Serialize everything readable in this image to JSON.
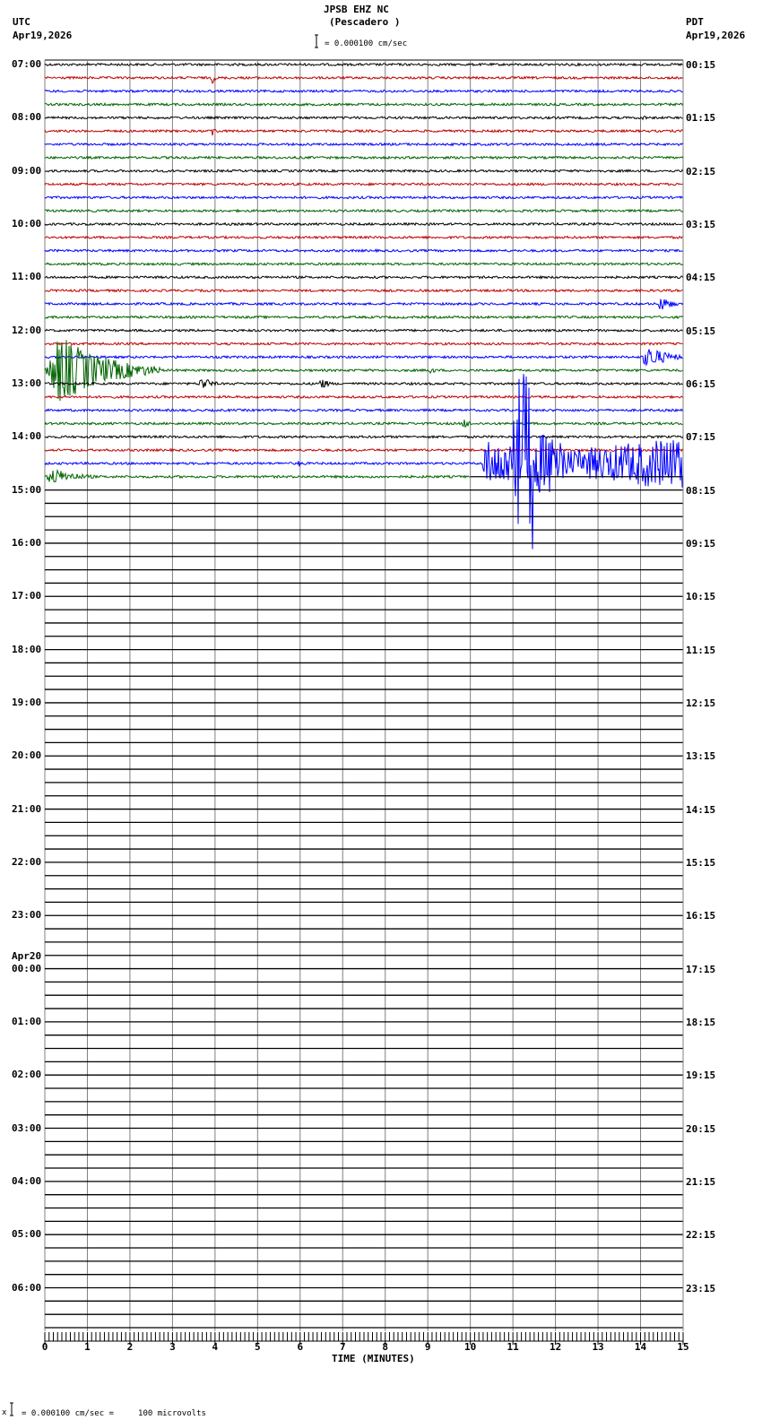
{
  "header": {
    "station": "JPSB EHZ NC",
    "location": "(Pescadero )",
    "left_tz": "UTC",
    "left_date": "Apr19,2026",
    "right_tz": "PDT",
    "right_date": "Apr19,2026",
    "scale_label": "= 0.000100 cm/sec"
  },
  "footer": {
    "scale_note": "= 0.000100 cm/sec =     100 microvolts",
    "marker": "x"
  },
  "chart_data": {
    "type": "line",
    "title": "JPSB EHZ NC (Pescadero )",
    "xlabel": "TIME (MINUTES)",
    "ylabel": "",
    "x_ticks": [
      0,
      1,
      2,
      3,
      4,
      5,
      6,
      7,
      8,
      9,
      10,
      11,
      12,
      13,
      14,
      15
    ],
    "xlim": [
      0,
      15
    ],
    "grid": true,
    "rows_total": 96,
    "rows_with_data": 32,
    "row_minutes": 15,
    "trace_colors": [
      "#000000",
      "#c00000",
      "#0000ff",
      "#006400"
    ],
    "left_labels": [
      {
        "row": 0,
        "text": "07:00"
      },
      {
        "row": 4,
        "text": "08:00"
      },
      {
        "row": 8,
        "text": "09:00"
      },
      {
        "row": 12,
        "text": "10:00"
      },
      {
        "row": 16,
        "text": "11:00"
      },
      {
        "row": 20,
        "text": "12:00"
      },
      {
        "row": 24,
        "text": "13:00"
      },
      {
        "row": 28,
        "text": "14:00"
      },
      {
        "row": 32,
        "text": "15:00"
      },
      {
        "row": 36,
        "text": "16:00"
      },
      {
        "row": 40,
        "text": "17:00"
      },
      {
        "row": 44,
        "text": "18:00"
      },
      {
        "row": 48,
        "text": "19:00"
      },
      {
        "row": 52,
        "text": "20:00"
      },
      {
        "row": 56,
        "text": "21:00"
      },
      {
        "row": 60,
        "text": "22:00"
      },
      {
        "row": 64,
        "text": "23:00"
      },
      {
        "row": 68,
        "text": "00:00",
        "date": "Apr20"
      },
      {
        "row": 72,
        "text": "01:00"
      },
      {
        "row": 76,
        "text": "02:00"
      },
      {
        "row": 80,
        "text": "03:00"
      },
      {
        "row": 84,
        "text": "04:00"
      },
      {
        "row": 88,
        "text": "05:00"
      },
      {
        "row": 92,
        "text": "06:00"
      }
    ],
    "right_labels": [
      {
        "row": 0,
        "text": "00:15"
      },
      {
        "row": 4,
        "text": "01:15"
      },
      {
        "row": 8,
        "text": "02:15"
      },
      {
        "row": 12,
        "text": "03:15"
      },
      {
        "row": 16,
        "text": "04:15"
      },
      {
        "row": 20,
        "text": "05:15"
      },
      {
        "row": 24,
        "text": "06:15"
      },
      {
        "row": 28,
        "text": "07:15"
      },
      {
        "row": 32,
        "text": "08:15"
      },
      {
        "row": 36,
        "text": "09:15"
      },
      {
        "row": 40,
        "text": "10:15"
      },
      {
        "row": 44,
        "text": "11:15"
      },
      {
        "row": 48,
        "text": "12:15"
      },
      {
        "row": 52,
        "text": "13:15"
      },
      {
        "row": 56,
        "text": "14:15"
      },
      {
        "row": 60,
        "text": "15:15"
      },
      {
        "row": 64,
        "text": "16:15"
      },
      {
        "row": 68,
        "text": "17:15"
      },
      {
        "row": 72,
        "text": "18:15"
      },
      {
        "row": 76,
        "text": "19:15"
      },
      {
        "row": 80,
        "text": "20:15"
      },
      {
        "row": 84,
        "text": "21:15"
      },
      {
        "row": 88,
        "text": "22:15"
      },
      {
        "row": 92,
        "text": "23:15"
      }
    ],
    "events": [
      {
        "row": 1,
        "minute": 3.9,
        "amp": 7,
        "dur": 0.2,
        "desc": "small spike"
      },
      {
        "row": 4,
        "minute": 14.0,
        "amp": 5,
        "dur": 0.2,
        "desc": "small spike"
      },
      {
        "row": 5,
        "minute": 3.9,
        "amp": 8,
        "dur": 0.2,
        "desc": "small spike"
      },
      {
        "row": 18,
        "minute": 14.4,
        "amp": 10,
        "dur": 0.5,
        "desc": "local event"
      },
      {
        "row": 22,
        "minute": 14.0,
        "amp": 14,
        "dur": 1.0,
        "desc": "event onset"
      },
      {
        "row": 23,
        "minute": 0.0,
        "amp": 40,
        "dur": 2.3,
        "desc": "earthquake coda"
      },
      {
        "row": 23,
        "minute": 9.0,
        "amp": 5,
        "dur": 0.3,
        "desc": "small event"
      },
      {
        "row": 24,
        "minute": 3.6,
        "amp": 9,
        "dur": 0.5,
        "desc": "small event"
      },
      {
        "row": 24,
        "minute": 6.4,
        "amp": 8,
        "dur": 0.4,
        "desc": "small event"
      },
      {
        "row": 27,
        "minute": 9.8,
        "amp": 7,
        "dur": 0.3,
        "desc": "small event"
      },
      {
        "row": 30,
        "minute": 5.9,
        "amp": 5,
        "dur": 0.3,
        "desc": "small event"
      },
      {
        "row": 30,
        "minute": 10.3,
        "amp": 100,
        "dur": 4.7,
        "desc": "large earthquake"
      },
      {
        "row": 31,
        "minute": 0.0,
        "amp": 10,
        "dur": 1.2,
        "desc": "coda"
      }
    ]
  }
}
